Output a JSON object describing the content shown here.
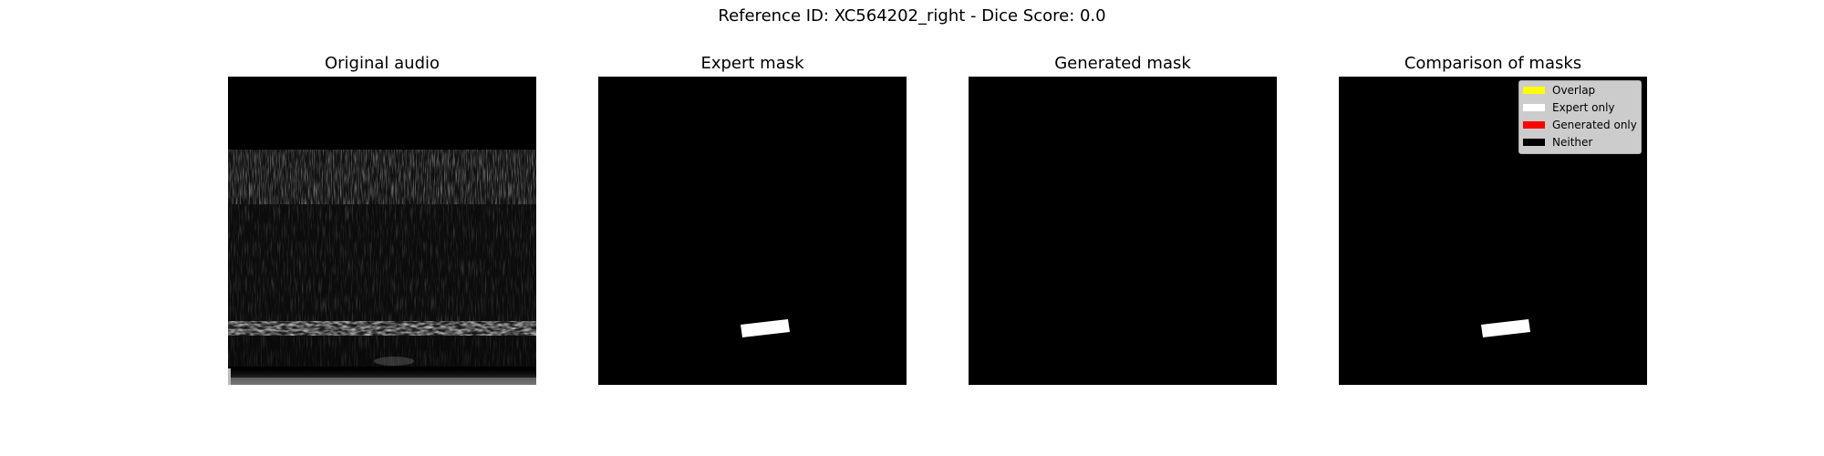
{
  "figure": {
    "title": "Reference ID: XC564202_right - Dice Score: 0.0"
  },
  "panels": [
    {
      "title": "Original audio"
    },
    {
      "title": "Expert mask"
    },
    {
      "title": "Generated mask"
    },
    {
      "title": "Comparison of masks"
    }
  ],
  "legend": {
    "items": [
      {
        "label": "Overlap",
        "color": "#ffff00"
      },
      {
        "label": "Expert only",
        "color": "#ffffff"
      },
      {
        "label": "Generated only",
        "color": "#ff0000"
      },
      {
        "label": "Neither",
        "color": "#000000"
      }
    ]
  }
}
